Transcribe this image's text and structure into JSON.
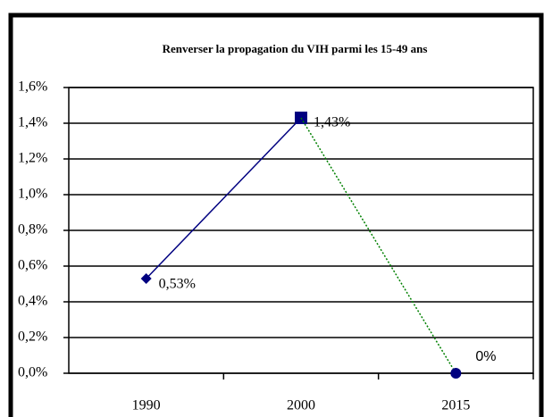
{
  "chart_data": {
    "type": "line",
    "title": "Renverser la propagation du VIH parmi les 15-49 ans",
    "categories": [
      "1990",
      "2000",
      "2015"
    ],
    "series": [
      {
        "color": "#000080",
        "dash": "solid",
        "values": [
          0.53,
          1.43,
          null
        ],
        "value_labels": [
          "0,53%",
          "1,43%",
          null
        ],
        "markers": [
          "diamond",
          "square",
          null
        ]
      },
      {
        "color": "#008000",
        "dash": "dotted",
        "values": [
          null,
          1.43,
          0
        ],
        "value_labels": [
          null,
          null,
          "0%"
        ],
        "markers": [
          null,
          null,
          "circle"
        ]
      }
    ],
    "ylim": [
      0,
      1.6
    ],
    "yticks": [
      {
        "value": 0,
        "label": "0,0%"
      },
      {
        "value": 0.2,
        "label": "0,2%"
      },
      {
        "value": 0.4,
        "label": "0,4%"
      },
      {
        "value": 0.6,
        "label": "0,6%"
      },
      {
        "value": 0.8,
        "label": "0,8%"
      },
      {
        "value": 1.0,
        "label": "1,0%"
      },
      {
        "value": 1.2,
        "label": "1,2%"
      },
      {
        "value": 1.4,
        "label": "1,4%"
      },
      {
        "value": 1.6,
        "label": "1,6%"
      }
    ],
    "grid": true
  }
}
